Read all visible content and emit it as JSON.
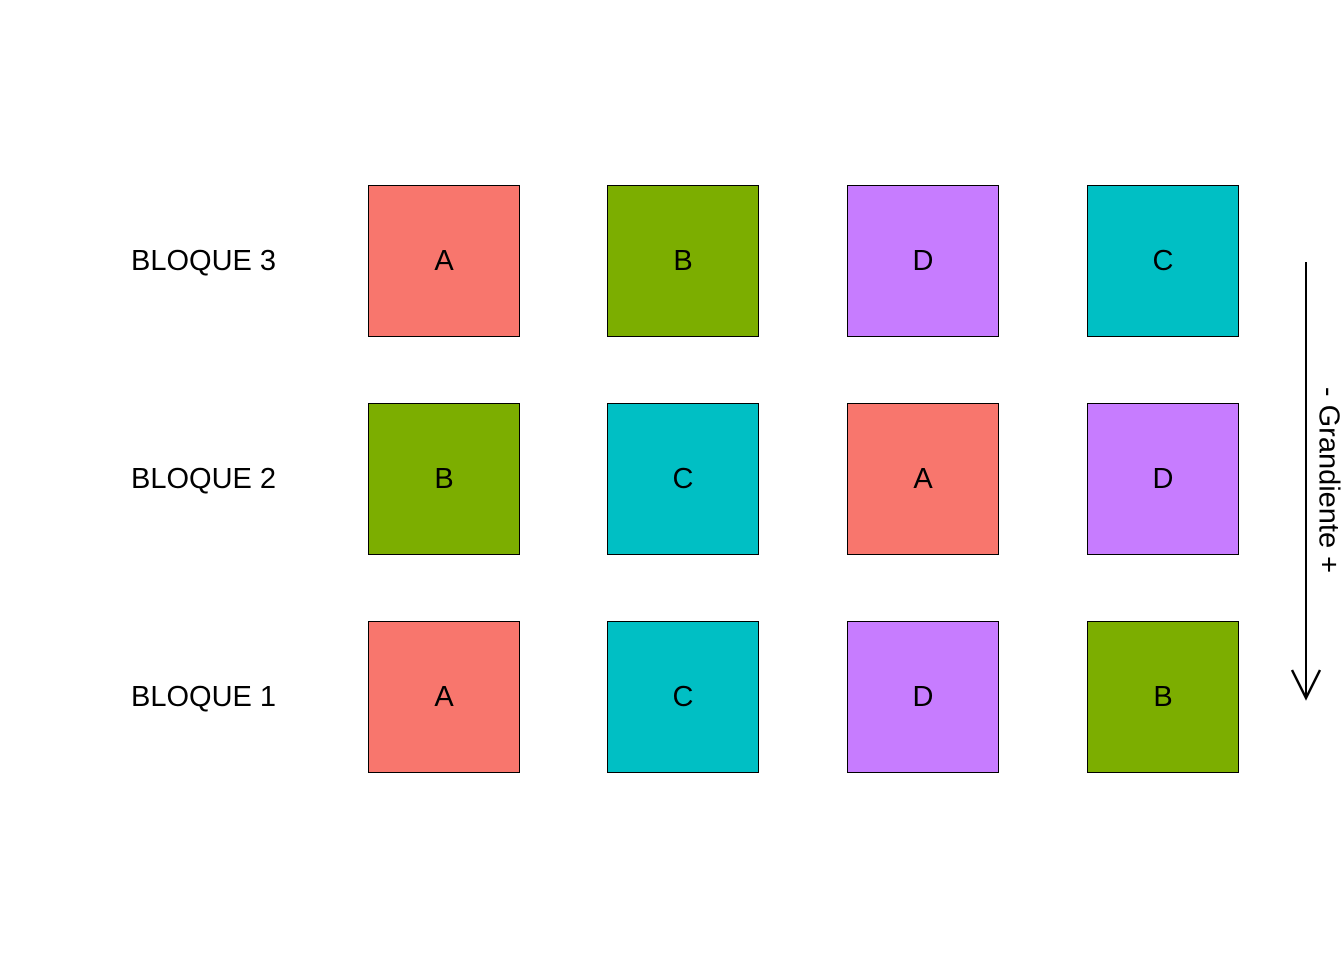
{
  "colors": {
    "A": "#F8766D",
    "B": "#7CAE00",
    "C": "#00BFC4",
    "D": "#C77CFF"
  },
  "blocks": [
    {
      "label": "BLOQUE 3",
      "plots": [
        "A",
        "B",
        "D",
        "C"
      ]
    },
    {
      "label": "BLOQUE 2",
      "plots": [
        "B",
        "C",
        "A",
        "D"
      ]
    },
    {
      "label": "BLOQUE 1",
      "plots": [
        "A",
        "C",
        "D",
        "B"
      ]
    }
  ],
  "gradient": {
    "label": "- Grandiente +",
    "direction": "down",
    "icon": "arrow-down-icon"
  }
}
